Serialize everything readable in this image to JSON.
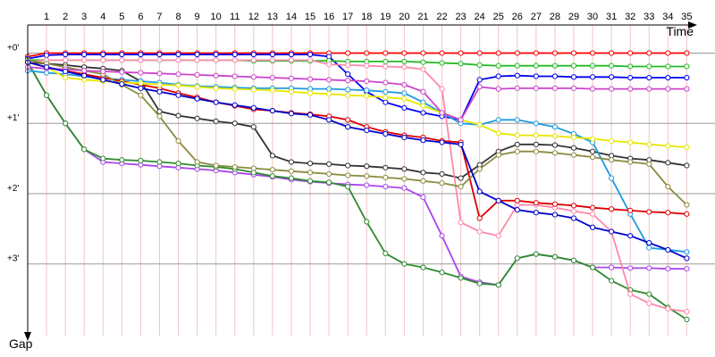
{
  "chart_data": {
    "type": "line",
    "x_label": "Time",
    "y_label": "Gap",
    "x": [
      0,
      1,
      2,
      3,
      4,
      5,
      6,
      7,
      8,
      9,
      10,
      11,
      12,
      13,
      14,
      15,
      16,
      17,
      18,
      19,
      20,
      21,
      22,
      23,
      24,
      25,
      26,
      27,
      28,
      29,
      30,
      31,
      32,
      33,
      34,
      35
    ],
    "xlim": [
      0,
      36.5
    ],
    "xticks": [
      1,
      2,
      3,
      4,
      5,
      6,
      7,
      8,
      9,
      10,
      11,
      12,
      13,
      14,
      15,
      16,
      17,
      18,
      19,
      20,
      21,
      22,
      23,
      24,
      25,
      26,
      27,
      28,
      29,
      30,
      31,
      32,
      33,
      34,
      35
    ],
    "ylim": [
      -0.4,
      4.02
    ],
    "yticks": [
      {
        "value": 0,
        "label": "+0'"
      },
      {
        "value": 1,
        "label": "+1'"
      },
      {
        "value": 2,
        "label": "+2'"
      },
      {
        "value": 3,
        "label": "+3'"
      }
    ],
    "grid": true,
    "series": [
      {
        "color": "#ff0000",
        "values": [
          0.05,
          0,
          0,
          0,
          0,
          0,
          0,
          0,
          0,
          0,
          0,
          0,
          0,
          0,
          0,
          0,
          0,
          0,
          0,
          0,
          0,
          0,
          0,
          0,
          0,
          0,
          0,
          0,
          0,
          0,
          0,
          0,
          0,
          0,
          0,
          0
        ]
      },
      {
        "color": "#0000ee",
        "values": [
          0.08,
          0.03,
          0.02,
          0.02,
          0.02,
          0.02,
          0.02,
          0.02,
          0.02,
          0.02,
          0.02,
          0.02,
          0.02,
          0.02,
          0.02,
          0.02,
          0.05,
          0.3,
          0.55,
          0.7,
          0.78,
          0.85,
          0.9,
          0.95,
          0.38,
          0.33,
          0.32,
          0.33,
          0.33,
          0.34,
          0.34,
          0.34,
          0.35,
          0.35,
          0.35,
          0.35
        ]
      },
      {
        "color": "#22bb22",
        "values": [
          0.1,
          0.1,
          0.1,
          0.1,
          0.1,
          0.1,
          0.1,
          0.1,
          0.1,
          0.1,
          0.1,
          0.1,
          0.11,
          0.11,
          0.11,
          0.11,
          0.11,
          0.12,
          0.12,
          0.12,
          0.12,
          0.13,
          0.14,
          0.15,
          0.17,
          0.18,
          0.18,
          0.18,
          0.18,
          0.18,
          0.18,
          0.18,
          0.19,
          0.19,
          0.19,
          0.19
        ]
      },
      {
        "color": "#aa44ee",
        "values": [
          0.13,
          0.6,
          1.0,
          1.37,
          1.55,
          1.57,
          1.59,
          1.61,
          1.63,
          1.65,
          1.67,
          1.7,
          1.73,
          1.76,
          1.8,
          1.83,
          1.85,
          1.87,
          1.88,
          1.9,
          1.92,
          2.05,
          2.6,
          3.18,
          3.26,
          3.3,
          2.92,
          2.86,
          2.9,
          2.95,
          3.05,
          3.05,
          3.06,
          3.06,
          3.07,
          3.07
        ]
      },
      {
        "color": "#2e8b2e",
        "values": [
          0.13,
          0.6,
          1.0,
          1.37,
          1.5,
          1.52,
          1.53,
          1.55,
          1.57,
          1.6,
          1.62,
          1.65,
          1.7,
          1.75,
          1.78,
          1.82,
          1.84,
          1.9,
          2.4,
          2.85,
          3.0,
          3.05,
          3.12,
          3.2,
          3.28,
          3.3,
          2.92,
          2.86,
          2.9,
          2.95,
          3.05,
          3.24,
          3.37,
          3.43,
          3.62,
          3.79
        ]
      },
      {
        "color": "#333333",
        "values": [
          0.13,
          0.15,
          0.17,
          0.2,
          0.22,
          0.25,
          0.4,
          0.83,
          0.89,
          0.93,
          0.97,
          1.0,
          1.05,
          1.46,
          1.55,
          1.57,
          1.58,
          1.6,
          1.61,
          1.63,
          1.65,
          1.7,
          1.72,
          1.78,
          1.59,
          1.4,
          1.3,
          1.3,
          1.31,
          1.35,
          1.4,
          1.46,
          1.5,
          1.52,
          1.56,
          1.6
        ]
      },
      {
        "color": "#ff88aa",
        "values": [
          0.13,
          0.1,
          0.1,
          0.1,
          0.1,
          0.1,
          0.1,
          0.1,
          0.1,
          0.1,
          0.1,
          0.1,
          0.1,
          0.1,
          0.1,
          0.1,
          0.16,
          0.17,
          0.18,
          0.19,
          0.2,
          0.23,
          0.51,
          2.41,
          2.54,
          2.6,
          2.16,
          2.16,
          2.2,
          2.25,
          2.29,
          2.54,
          3.43,
          3.56,
          3.64,
          3.68
        ]
      },
      {
        "color": "#1e9be0",
        "values": [
          0.25,
          0.28,
          0.3,
          0.33,
          0.36,
          0.38,
          0.4,
          0.42,
          0.45,
          0.47,
          0.48,
          0.49,
          0.5,
          0.5,
          0.5,
          0.51,
          0.51,
          0.52,
          0.53,
          0.55,
          0.57,
          0.7,
          0.85,
          1.0,
          1.02,
          0.95,
          0.95,
          1.0,
          1.05,
          1.15,
          1.27,
          1.78,
          2.29,
          2.77,
          2.8,
          2.83
        ]
      },
      {
        "color": "#dd0000",
        "values": [
          0.13,
          0.2,
          0.25,
          0.3,
          0.35,
          0.4,
          0.45,
          0.5,
          0.57,
          0.63,
          0.7,
          0.75,
          0.8,
          0.82,
          0.85,
          0.87,
          0.9,
          0.95,
          1.05,
          1.12,
          1.17,
          1.2,
          1.25,
          1.27,
          2.35,
          2.1,
          2.1,
          2.13,
          2.15,
          2.17,
          2.2,
          2.22,
          2.24,
          2.26,
          2.27,
          2.29
        ]
      },
      {
        "color": "#e6e600",
        "values": [
          0.13,
          0.2,
          0.35,
          0.38,
          0.4,
          0.42,
          0.43,
          0.45,
          0.46,
          0.48,
          0.5,
          0.51,
          0.52,
          0.53,
          0.55,
          0.57,
          0.58,
          0.6,
          0.61,
          0.63,
          0.65,
          0.75,
          0.85,
          0.95,
          1.02,
          1.14,
          1.17,
          1.17,
          1.18,
          1.2,
          1.22,
          1.25,
          1.27,
          1.3,
          1.32,
          1.34
        ]
      },
      {
        "color": "#8b8b40",
        "values": [
          0.1,
          0.15,
          0.2,
          0.25,
          0.3,
          0.45,
          0.6,
          0.9,
          1.25,
          1.55,
          1.6,
          1.62,
          1.64,
          1.66,
          1.68,
          1.7,
          1.72,
          1.74,
          1.75,
          1.77,
          1.79,
          1.82,
          1.85,
          1.9,
          1.65,
          1.45,
          1.4,
          1.4,
          1.42,
          1.45,
          1.48,
          1.52,
          1.55,
          1.58,
          1.9,
          2.16
        ]
      },
      {
        "color": "#cc44cc",
        "values": [
          0.2,
          0.22,
          0.23,
          0.25,
          0.26,
          0.27,
          0.28,
          0.29,
          0.3,
          0.31,
          0.32,
          0.33,
          0.34,
          0.35,
          0.36,
          0.37,
          0.38,
          0.39,
          0.4,
          0.42,
          0.45,
          0.55,
          0.85,
          0.95,
          0.48,
          0.51,
          0.5,
          0.5,
          0.5,
          0.5,
          0.51,
          0.51,
          0.51,
          0.51,
          0.51,
          0.51
        ]
      },
      {
        "color": "#0000cc",
        "values": [
          0.13,
          0.2,
          0.26,
          0.32,
          0.38,
          0.44,
          0.5,
          0.55,
          0.6,
          0.65,
          0.7,
          0.74,
          0.78,
          0.82,
          0.86,
          0.88,
          0.95,
          1.05,
          1.1,
          1.15,
          1.2,
          1.24,
          1.27,
          1.3,
          1.97,
          2.1,
          2.23,
          2.27,
          2.3,
          2.35,
          2.48,
          2.54,
          2.6,
          2.7,
          2.8,
          2.92
        ]
      }
    ]
  }
}
